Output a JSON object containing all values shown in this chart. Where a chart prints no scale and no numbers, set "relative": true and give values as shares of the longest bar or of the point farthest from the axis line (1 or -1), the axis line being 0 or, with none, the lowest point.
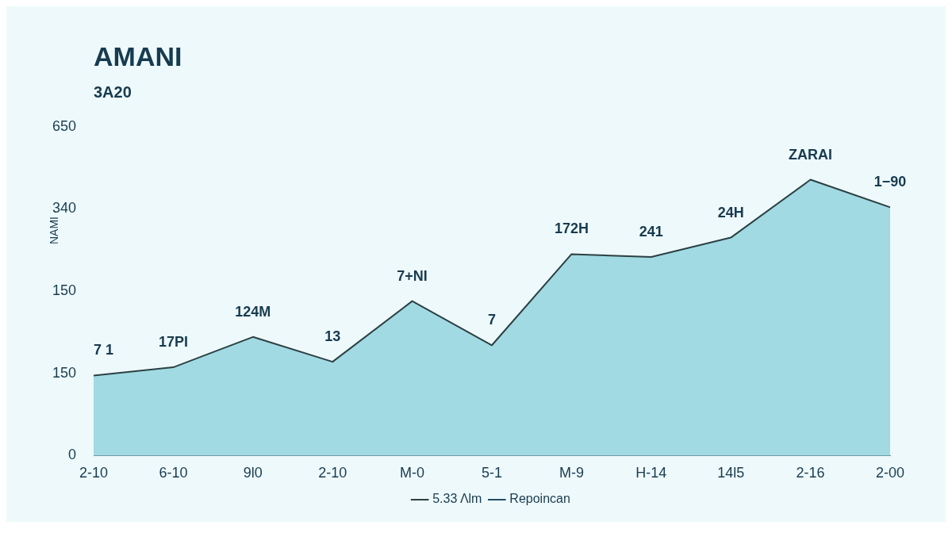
{
  "chart_data": {
    "type": "area",
    "title": "AMANI",
    "subtitle": "3A20",
    "ylabel": "NAMI",
    "relative": true,
    "categories": [
      "2-10",
      "6-10",
      "9l0",
      "2-10",
      "M-0",
      "5-1",
      "M-9",
      "H-14",
      "14l5",
      "2-16",
      "2-00"
    ],
    "series": [
      {
        "name": "5.33 Λlm",
        "color": "#93d5de",
        "values": [
          0.29,
          0.32,
          0.43,
          0.34,
          0.56,
          0.4,
          0.73,
          0.72,
          0.79,
          1,
          0.9
        ]
      },
      {
        "name": "Repoincan",
        "color": "#1f4e66",
        "type": "line",
        "values": [
          null,
          null,
          null,
          null,
          null,
          null,
          null,
          null,
          null,
          null,
          null
        ]
      }
    ],
    "annotations": [
      "7 1",
      "17PI",
      "124M",
      "13",
      "7+NI",
      "7",
      "172H",
      "241",
      "24H",
      "ZARAI",
      "1−90",
      "650",
      "340",
      "150",
      "150",
      "0"
    ],
    "grid": false,
    "legend": "bottom",
    "marker": "none",
    "line_style": "solid"
  }
}
